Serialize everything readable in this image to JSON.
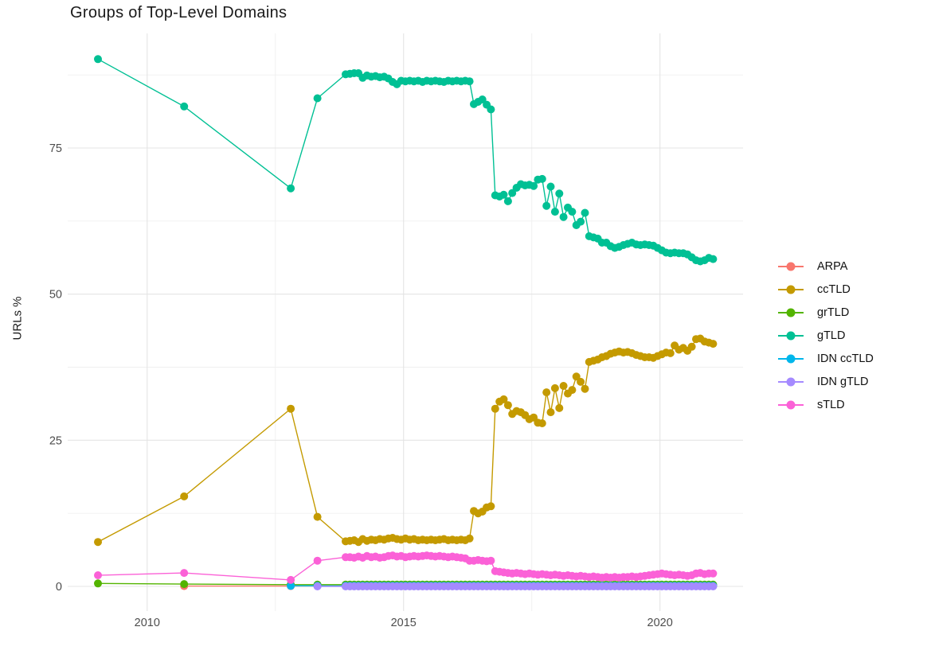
{
  "title": "Groups of Top-Level Domains",
  "axes": {
    "y_label": "URLs %",
    "y_tick_labels": [
      "0",
      "25",
      "50",
      "75"
    ],
    "x_tick_labels": [
      "2010",
      "2015",
      "2020"
    ]
  },
  "colors": {
    "grid_major": "#e4e4e4",
    "grid_minor": "#f0f0f0",
    "tick_text": "#4d4d4d"
  },
  "chart_data": {
    "type": "line",
    "title": "Groups of Top-Level Domains",
    "xlabel": "",
    "ylabel": "URLs %",
    "legend_position": "right",
    "grid": true,
    "x_ticks": [
      2010,
      2015,
      2020
    ],
    "y_ticks": [
      0,
      25,
      50,
      75
    ],
    "x_minor": [
      2012.5,
      2017.5
    ],
    "y_minor": [
      12.5,
      37.5,
      62.5,
      87.5
    ],
    "xlim": [
      2008.45,
      2021.62
    ],
    "ylim": [
      -4.22,
      94.6
    ],
    "monthly_start": 2013.87,
    "monthly_step": 0.083333,
    "series": [
      {
        "name": "ARPA",
        "color": "#F8766D",
        "early": [
          [
            2010.72,
            0.05
          ],
          [
            2012.8,
            0.05
          ],
          [
            2013.32,
            0.05
          ]
        ],
        "monthly_fill": {
          "value": 0.05,
          "count": 87
        }
      },
      {
        "name": "ccTLD",
        "color": "#C49A00",
        "early": [
          [
            2009.04,
            7.6
          ],
          [
            2010.72,
            15.4
          ],
          [
            2012.8,
            30.4
          ],
          [
            2013.32,
            11.9
          ]
        ],
        "monthly_values": [
          7.7,
          7.8,
          7.9,
          7.6,
          8.1,
          7.8,
          8.0,
          7.9,
          8.1,
          8.0,
          8.2,
          8.3,
          8.1,
          8.0,
          8.2,
          8.0,
          8.1,
          7.9,
          8.0,
          7.9,
          8.0,
          7.9,
          8.0,
          8.1,
          7.9,
          8.0,
          7.9,
          8.0,
          7.9,
          8.2,
          12.9,
          12.5,
          12.8,
          13.5,
          13.7,
          30.4,
          31.6,
          32.0,
          31.0,
          29.5,
          30.0,
          29.8,
          29.3,
          28.6,
          28.9,
          28.0,
          27.9,
          33.2,
          29.8,
          33.9,
          30.5,
          34.3,
          33.0,
          33.6,
          35.9,
          35.0,
          33.8,
          38.4,
          38.6,
          38.8,
          39.2,
          39.4,
          39.8,
          40.0,
          40.2,
          40.0,
          40.1,
          39.9,
          39.6,
          39.4,
          39.2,
          39.2,
          39.1,
          39.4,
          39.7,
          40.0,
          39.9,
          41.2,
          40.5,
          40.8,
          40.3,
          41.0,
          42.3,
          42.4,
          41.9,
          41.7,
          41.5
        ]
      },
      {
        "name": "grTLD",
        "color": "#53B400",
        "early": [
          [
            2009.04,
            0.5
          ],
          [
            2010.72,
            0.4
          ],
          [
            2012.8,
            0.3
          ],
          [
            2013.32,
            0.3
          ]
        ],
        "monthly_fill": {
          "value": 0.3,
          "count": 87
        }
      },
      {
        "name": "gTLD",
        "color": "#00C094",
        "early": [
          [
            2009.04,
            90.2
          ],
          [
            2010.72,
            82.1
          ],
          [
            2012.8,
            68.1
          ],
          [
            2013.32,
            83.5
          ]
        ],
        "monthly_values": [
          87.6,
          87.7,
          87.8,
          87.8,
          87.0,
          87.4,
          87.2,
          87.3,
          87.1,
          87.2,
          86.9,
          86.3,
          85.9,
          86.5,
          86.4,
          86.5,
          86.4,
          86.5,
          86.3,
          86.5,
          86.4,
          86.5,
          86.4,
          86.3,
          86.5,
          86.4,
          86.5,
          86.4,
          86.5,
          86.4,
          82.5,
          82.9,
          83.3,
          82.4,
          81.6,
          66.9,
          66.7,
          67.0,
          65.9,
          67.3,
          68.2,
          68.8,
          68.6,
          68.7,
          68.5,
          69.6,
          69.7,
          65.1,
          68.4,
          64.1,
          67.2,
          63.2,
          64.8,
          64.1,
          61.8,
          62.4,
          63.9,
          59.9,
          59.7,
          59.5,
          58.8,
          58.8,
          58.2,
          57.9,
          58.1,
          58.4,
          58.6,
          58.8,
          58.5,
          58.4,
          58.5,
          58.4,
          58.3,
          57.9,
          57.5,
          57.1,
          57.0,
          57.1,
          57.0,
          57.0,
          56.8,
          56.3,
          55.8,
          55.6,
          55.8,
          56.2,
          56.0
        ]
      },
      {
        "name": "IDN ccTLD",
        "color": "#00B6EB",
        "early": [
          [
            2012.8,
            0.1
          ],
          [
            2013.32,
            0.1
          ]
        ],
        "monthly_fill": {
          "value": 0.1,
          "count": 87
        }
      },
      {
        "name": "IDN gTLD",
        "color": "#A58AFF",
        "early": [
          [
            2013.32,
            0.0
          ]
        ],
        "monthly_fill": {
          "value": 0.0,
          "count": 87
        }
      },
      {
        "name": "sTLD",
        "color": "#FB61D7",
        "early": [
          [
            2009.04,
            1.9
          ],
          [
            2010.72,
            2.3
          ],
          [
            2012.8,
            1.1
          ],
          [
            2013.32,
            4.4
          ]
        ],
        "monthly_values": [
          5.0,
          5.0,
          4.9,
          5.1,
          4.9,
          5.2,
          5.0,
          5.1,
          4.9,
          5.0,
          5.2,
          5.3,
          5.1,
          5.2,
          5.0,
          5.1,
          5.2,
          5.1,
          5.2,
          5.3,
          5.2,
          5.1,
          5.2,
          5.1,
          5.0,
          5.1,
          5.0,
          4.9,
          4.8,
          4.4,
          4.4,
          4.5,
          4.4,
          4.3,
          4.4,
          2.6,
          2.5,
          2.4,
          2.3,
          2.2,
          2.3,
          2.2,
          2.1,
          2.2,
          2.1,
          2.0,
          2.1,
          2.0,
          1.9,
          2.0,
          1.9,
          1.8,
          1.9,
          1.8,
          1.7,
          1.8,
          1.7,
          1.6,
          1.7,
          1.6,
          1.5,
          1.6,
          1.5,
          1.6,
          1.5,
          1.6,
          1.6,
          1.7,
          1.6,
          1.7,
          1.8,
          1.9,
          2.0,
          2.1,
          2.2,
          2.1,
          2.0,
          1.9,
          2.0,
          1.9,
          1.8,
          1.9,
          2.2,
          2.3,
          2.1,
          2.2,
          2.2
        ]
      }
    ]
  }
}
